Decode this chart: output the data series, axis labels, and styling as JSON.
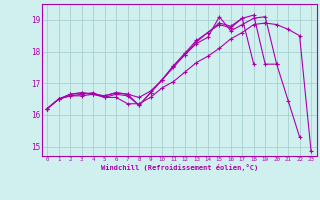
{
  "xlabel": "Windchill (Refroidissement éolien,°C)",
  "bg_color": "#d0f0f0",
  "line_color": "#aa00aa",
  "grid_color": "#a0c8c8",
  "xlim": [
    -0.5,
    23.5
  ],
  "ylim": [
    14.7,
    19.5
  ],
  "xticks": [
    0,
    1,
    2,
    3,
    4,
    5,
    6,
    7,
    8,
    9,
    10,
    11,
    12,
    13,
    14,
    15,
    16,
    17,
    18,
    19,
    20,
    21,
    22,
    23
  ],
  "yticks": [
    15,
    16,
    17,
    18,
    19
  ],
  "series": [
    {
      "x": [
        0,
        1,
        2,
        3,
        4,
        5,
        6,
        7,
        8,
        9,
        10,
        11,
        12,
        13,
        14,
        15,
        16,
        17,
        18,
        19,
        20,
        21,
        22,
        23
      ],
      "y": [
        16.2,
        16.5,
        16.6,
        16.6,
        16.65,
        16.55,
        16.55,
        16.35,
        16.35,
        16.55,
        16.85,
        17.05,
        17.35,
        17.65,
        17.85,
        18.1,
        18.4,
        18.6,
        18.85,
        18.9,
        18.85,
        18.7,
        18.5,
        14.85
      ]
    },
    {
      "x": [
        0,
        1,
        2,
        3,
        4,
        5,
        6,
        7,
        8,
        9,
        10,
        11,
        12,
        13,
        14,
        15,
        16,
        17,
        18,
        19,
        20,
        21,
        22
      ],
      "y": [
        16.2,
        16.5,
        16.6,
        16.65,
        16.7,
        16.55,
        16.65,
        16.6,
        16.3,
        16.7,
        17.1,
        17.5,
        17.9,
        18.25,
        18.45,
        19.1,
        18.65,
        18.85,
        19.05,
        19.1,
        17.6,
        16.45,
        15.3
      ]
    },
    {
      "x": [
        0,
        1,
        2,
        3,
        4,
        5,
        6,
        7,
        8,
        9,
        10,
        11,
        12,
        13,
        14,
        15,
        16,
        17,
        18,
        19,
        20
      ],
      "y": [
        16.2,
        16.5,
        16.65,
        16.7,
        16.65,
        16.6,
        16.7,
        16.65,
        16.55,
        16.75,
        17.1,
        17.55,
        17.95,
        18.35,
        18.6,
        18.85,
        18.75,
        19.05,
        19.15,
        17.6,
        17.6
      ]
    },
    {
      "x": [
        0,
        1,
        2,
        3,
        4,
        5,
        6,
        7,
        8,
        9,
        10,
        11,
        12,
        13,
        14,
        15,
        16,
        17,
        18
      ],
      "y": [
        16.2,
        16.5,
        16.65,
        16.7,
        16.65,
        16.6,
        16.7,
        16.65,
        16.3,
        16.7,
        17.1,
        17.55,
        17.9,
        18.3,
        18.6,
        18.9,
        18.8,
        19.05,
        17.6
      ]
    }
  ]
}
